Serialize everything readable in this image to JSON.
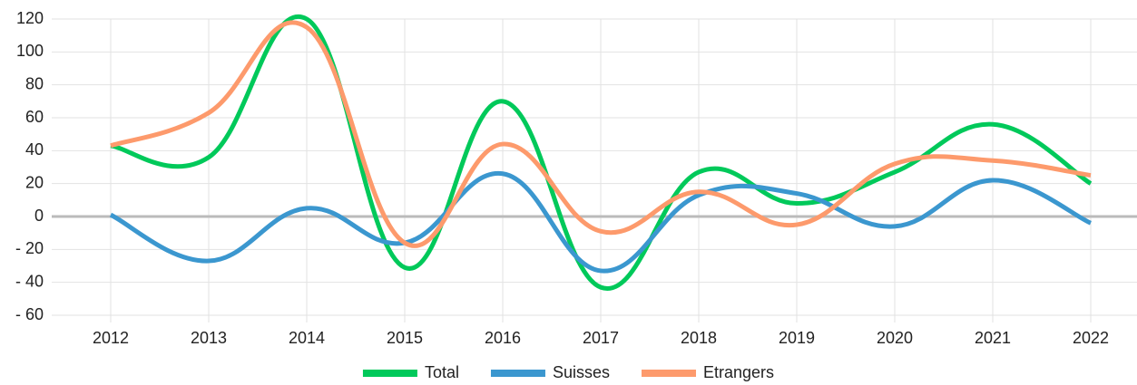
{
  "chart_data": {
    "type": "line",
    "categories": [
      "2012",
      "2013",
      "2014",
      "2015",
      "2016",
      "2017",
      "2018",
      "2019",
      "2020",
      "2021",
      "2022"
    ],
    "series": [
      {
        "name": "Total",
        "color": "#00c95a",
        "values": [
          43,
          36,
          120,
          -31,
          70,
          -43,
          27,
          8,
          27,
          56,
          20
        ]
      },
      {
        "name": "Suisses",
        "color": "#3b97cf",
        "values": [
          1,
          -27,
          5,
          -16,
          26,
          -33,
          13,
          14,
          -6,
          22,
          -4
        ]
      },
      {
        "name": "Etrangers",
        "color": "#fd9a6c",
        "values": [
          43,
          63,
          115,
          -16,
          44,
          -9,
          15,
          -5,
          32,
          34,
          25
        ]
      }
    ],
    "ylim": [
      -60,
      120
    ],
    "yticks": [
      {
        "value": -60,
        "label": "- 60"
      },
      {
        "value": -40,
        "label": "- 40"
      },
      {
        "value": -20,
        "label": "- 20"
      },
      0,
      20,
      40,
      60,
      80,
      100,
      120
    ],
    "grid": true,
    "legend": "bottom"
  }
}
